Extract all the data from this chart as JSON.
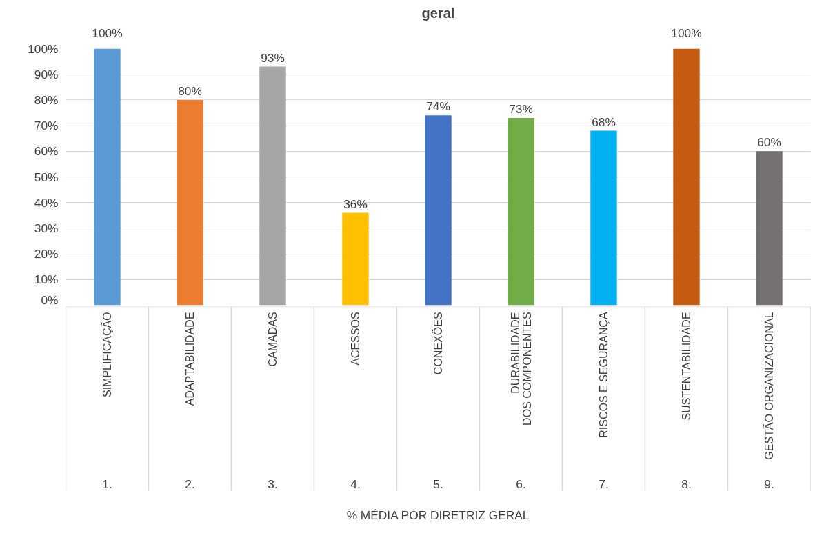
{
  "chart_data": {
    "type": "bar",
    "title": "geral",
    "xlabel": "% MÉDIA POR DIRETRIZ GERAL",
    "categories": [
      "SIMPLIFICAÇÃO",
      "ADAPTABILIDADE",
      "CAMADAS",
      "ACESSOS",
      "CONEXÕES",
      "DURABILIDADE DOS COMPONENTES",
      "RISCOS E SEGURANÇA",
      "SUSTENTABILIDADE",
      "GESTÃO ORGANIZACIONAL"
    ],
    "values": [
      100,
      80,
      93,
      36,
      74,
      73,
      68,
      100,
      60
    ],
    "colors": [
      "#5b9bd5",
      "#ed7d31",
      "#a5a5a5",
      "#ffc000",
      "#4472c4",
      "#70ad47",
      "#00b0f0",
      "#c55a11",
      "#767171"
    ],
    "annotations": [
      "1.",
      "2.",
      "3.",
      "4.",
      "5.",
      "6.",
      "7.",
      "8.",
      "9."
    ],
    "ylim": [
      0,
      100
    ],
    "yticks": [
      {
        "value": 0,
        "label": "0%"
      },
      {
        "value": 10,
        "label": "10%"
      },
      {
        "value": 20,
        "label": "20%"
      },
      {
        "value": 30,
        "label": "30%"
      },
      {
        "value": 40,
        "label": "40%"
      },
      {
        "value": 50,
        "label": "50%"
      },
      {
        "value": 60,
        "label": "60%"
      },
      {
        "value": 70,
        "label": "70%"
      },
      {
        "value": 80,
        "label": "80%"
      },
      {
        "value": 90,
        "label": "90%"
      },
      {
        "value": 100,
        "label": "100%"
      }
    ],
    "value_labels": [
      "100%",
      "80%",
      "93%",
      "36%",
      "74%",
      "73%",
      "68%",
      "100%",
      "60%"
    ],
    "grid": "y"
  }
}
